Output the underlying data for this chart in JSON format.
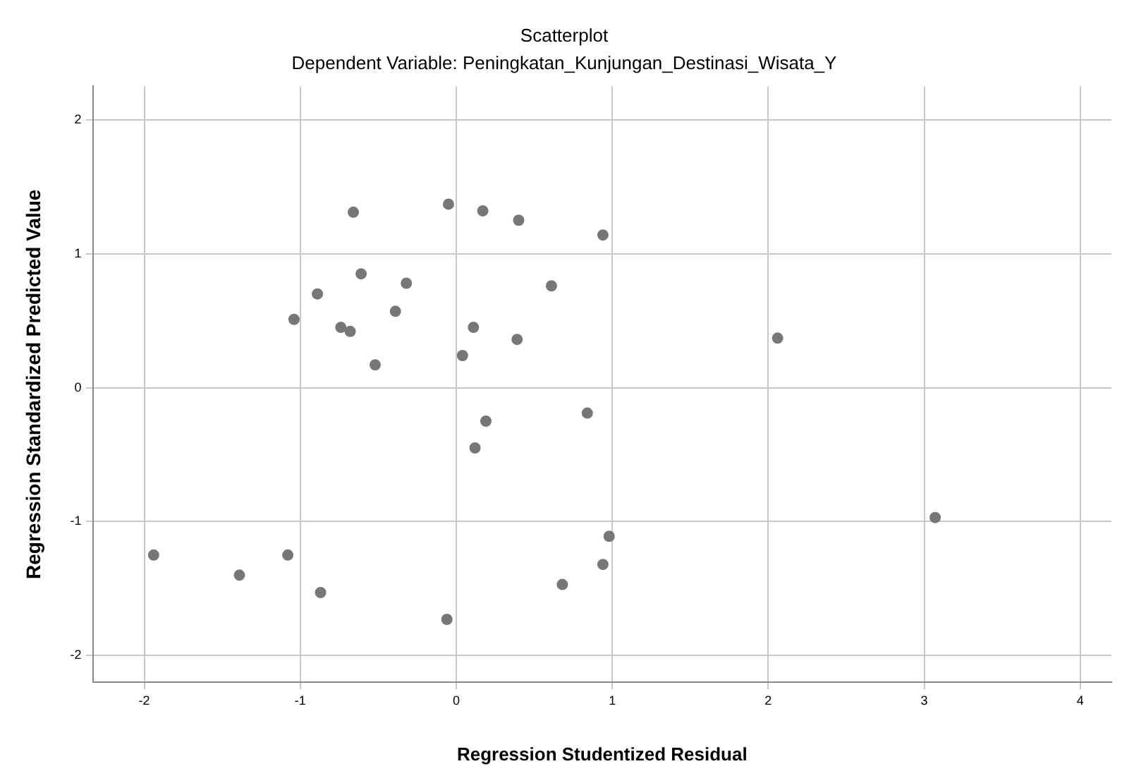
{
  "chart_data": {
    "type": "scatter",
    "title": "Scatterplot",
    "subtitle": "Dependent Variable: Peningkatan_Kunjungan_Destinasi_Wisata_Y",
    "xlabel": "Regression Studentized Residual",
    "ylabel": "Regression Standardized Predicted Value",
    "x": [
      -1.94,
      -1.39,
      -1.08,
      -0.87,
      -0.06,
      -1.04,
      -0.89,
      -0.74,
      -0.68,
      -0.66,
      -0.61,
      -0.52,
      -0.39,
      -0.32,
      -0.05,
      0.04,
      0.11,
      0.17,
      0.12,
      0.19,
      0.39,
      0.4,
      0.61,
      0.84,
      0.68,
      0.94,
      0.98,
      0.94,
      2.06,
      3.07
    ],
    "series": [
      {
        "color": "#777777",
        "values": [
          -1.25,
          -1.4,
          -1.25,
          -1.53,
          -1.73,
          0.51,
          0.7,
          0.45,
          0.42,
          1.31,
          0.85,
          0.17,
          0.57,
          0.78,
          1.37,
          0.24,
          0.45,
          1.32,
          -0.45,
          -0.25,
          0.36,
          1.25,
          0.76,
          -0.19,
          -1.47,
          1.14,
          -1.11,
          -1.32,
          0.37,
          -0.97
        ]
      }
    ],
    "xlim": [
      -2.33,
      4.2
    ],
    "ylim": [
      -2.2,
      2.25
    ],
    "xticks": [
      -2,
      -1,
      0,
      1,
      2,
      3,
      4
    ],
    "yticks": [
      -2,
      -1,
      0,
      1,
      2
    ],
    "grid": true,
    "legend": false,
    "marker": "circle"
  }
}
